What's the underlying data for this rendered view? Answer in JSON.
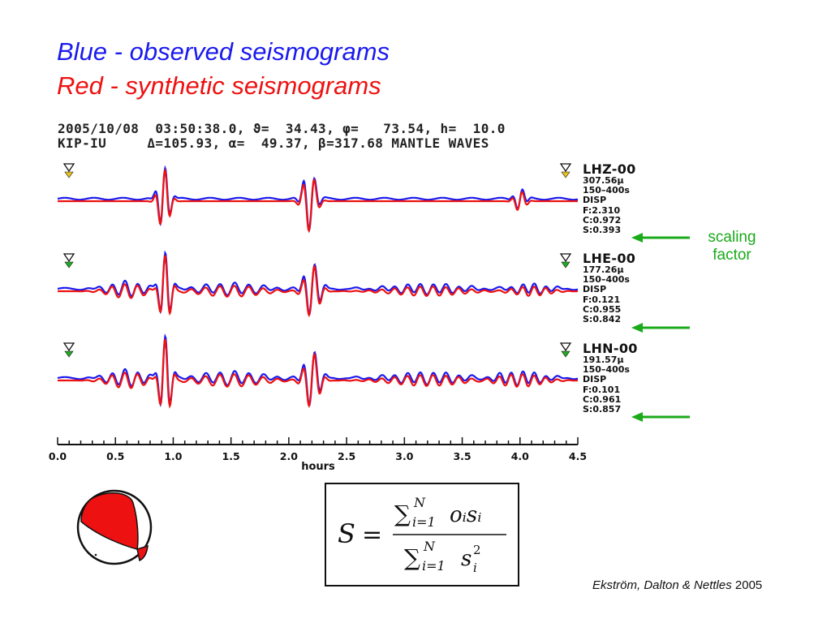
{
  "legend": {
    "blue_line": "Blue - observed seismograms",
    "red_line": "Red - synthetic seismograms",
    "blue_color": "#1a1aee",
    "red_color": "#ee1111"
  },
  "header": {
    "line1": "2005/10/08  03:50:38.0, ϑ=  34.43, φ=   73.54, h=  10.0",
    "line2": "KIP-IU     Δ=105.93, α=  49.37, β=317.68 MANTLE WAVES"
  },
  "traces": [
    {
      "channel": "LHZ-00",
      "amplitude": "307.56μ",
      "band": "150–400s",
      "kind": "DISP",
      "f": "F:2.310",
      "c": "C:0.972",
      "s": "S:0.393"
    },
    {
      "channel": "LHE-00",
      "amplitude": "177.26μ",
      "band": "150–400s",
      "kind": "DISP",
      "f": "F:0.121",
      "c": "C:0.955",
      "s": "S:0.842"
    },
    {
      "channel": "LHN-00",
      "amplitude": "191.57μ",
      "band": "150–400s",
      "kind": "DISP",
      "f": "F:0.101",
      "c": "C:0.961",
      "s": "S:0.857"
    }
  ],
  "axis": {
    "label": "hours",
    "ticks": [
      "0.0",
      "0.5",
      "1.0",
      "1.5",
      "2.0",
      "2.5",
      "3.0",
      "3.5",
      "4.0",
      "4.5"
    ],
    "range": [
      0,
      4.5
    ]
  },
  "annotation": {
    "line1": "scaling",
    "line2": "factor",
    "color": "#1aaa1a"
  },
  "equation": {
    "lhs": "S",
    "equals": "=",
    "sum_symbol": "∑",
    "index": "i=1",
    "upper": "N",
    "numerator_terms": "oᵢsᵢ",
    "denominator_base": "s",
    "denominator_sub": "i",
    "denominator_sup": "2"
  },
  "citation": {
    "authors": "Ekström, Dalton & Nettles",
    "year": "2005"
  }
}
